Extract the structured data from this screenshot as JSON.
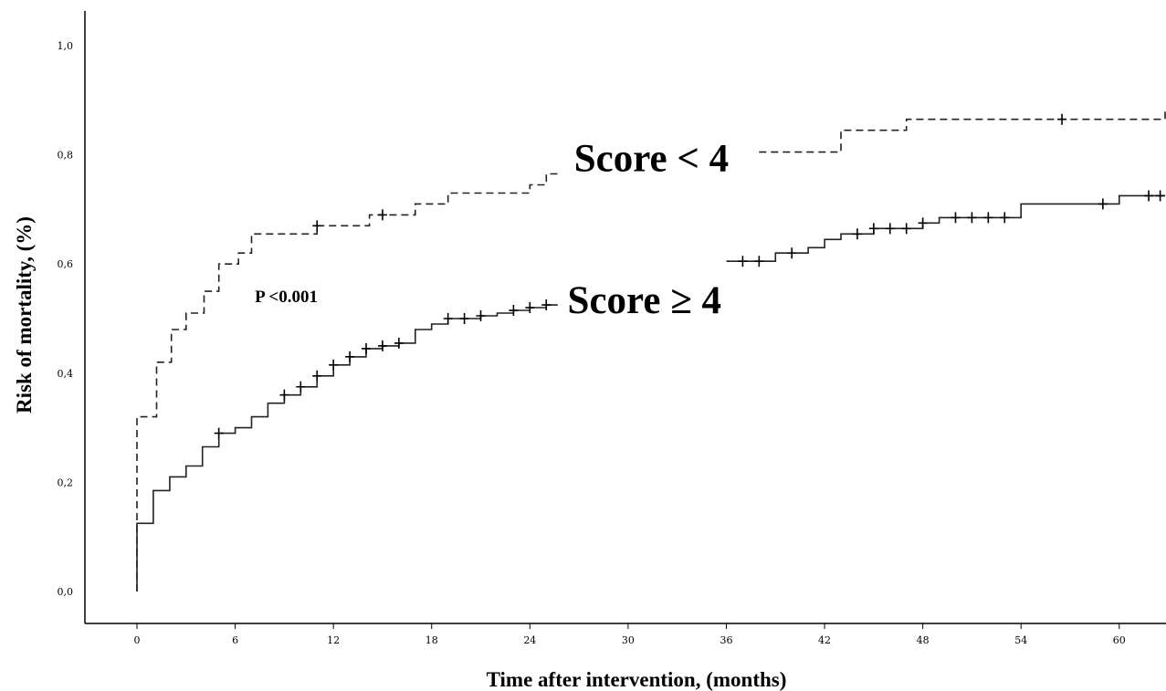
{
  "chart_data": {
    "type": "line",
    "xlabel": "Time after intervention, (months)",
    "ylabel": "Risk of mortality, (%)",
    "xlim": [
      0,
      62.8
    ],
    "ylim": [
      0,
      1.0
    ],
    "x_ticks": [
      0,
      6,
      12,
      18,
      24,
      30,
      36,
      42,
      48,
      54,
      60
    ],
    "y_ticks": [
      0.0,
      0.2,
      0.4,
      0.6,
      0.8,
      1.0
    ],
    "x_tick_labels": [
      "0",
      "6",
      "12",
      "18",
      "24",
      "30",
      "36",
      "42",
      "48",
      "54",
      "60"
    ],
    "y_tick_labels": [
      "0,0",
      "0,2",
      "0,4",
      "0,6",
      "0,8",
      "1,0"
    ],
    "grid": false,
    "annotations": [
      {
        "text": "P <0.001",
        "x": 7.2,
        "y": 0.53,
        "size": "small"
      },
      {
        "text": "Score < 4",
        "x": 26.7,
        "y": 0.77,
        "size": "large"
      },
      {
        "text": "Score ≥ 4",
        "x": 26.3,
        "y": 0.51,
        "size": "large"
      }
    ],
    "series": [
      {
        "style": "dashed",
        "segments": [
          [
            [
              0,
              0
            ],
            [
              0,
              0.32
            ],
            [
              1.2,
              0.32
            ],
            [
              1.2,
              0.42
            ],
            [
              2.1,
              0.42
            ],
            [
              2.1,
              0.48
            ],
            [
              3.0,
              0.48
            ],
            [
              3.0,
              0.51
            ],
            [
              4.1,
              0.51
            ],
            [
              4.1,
              0.55
            ],
            [
              5.0,
              0.55
            ],
            [
              5.0,
              0.6
            ],
            [
              6.2,
              0.6
            ],
            [
              6.2,
              0.62
            ],
            [
              7.0,
              0.62
            ],
            [
              7.0,
              0.655
            ],
            [
              11.0,
              0.655
            ],
            [
              11.0,
              0.67
            ],
            [
              14.2,
              0.67
            ],
            [
              14.2,
              0.69
            ],
            [
              17.0,
              0.69
            ],
            [
              17.0,
              0.71
            ],
            [
              19.0,
              0.71
            ],
            [
              19.0,
              0.73
            ],
            [
              24.0,
              0.73
            ],
            [
              24.0,
              0.745
            ],
            [
              25.0,
              0.745
            ],
            [
              25.0,
              0.765
            ],
            [
              25.7,
              0.765
            ]
          ],
          [
            [
              38.0,
              0.805
            ],
            [
              43.0,
              0.805
            ],
            [
              43.0,
              0.845
            ],
            [
              47.0,
              0.845
            ],
            [
              47.0,
              0.865
            ],
            [
              62.8,
              0.865
            ],
            [
              62.8,
              0.885
            ]
          ]
        ],
        "censored": [
          [
            11.0,
            0.67
          ],
          [
            15.0,
            0.69
          ],
          [
            56.5,
            0.865
          ]
        ]
      },
      {
        "style": "solid",
        "segments": [
          [
            [
              0,
              0
            ],
            [
              0,
              0.125
            ],
            [
              1.0,
              0.125
            ],
            [
              1.0,
              0.185
            ],
            [
              2.0,
              0.185
            ],
            [
              2.0,
              0.21
            ],
            [
              3.0,
              0.21
            ],
            [
              3.0,
              0.23
            ],
            [
              4.0,
              0.23
            ],
            [
              4.0,
              0.265
            ],
            [
              5.0,
              0.265
            ],
            [
              5.0,
              0.29
            ],
            [
              6.0,
              0.29
            ],
            [
              6.0,
              0.3
            ],
            [
              7.0,
              0.3
            ],
            [
              7.0,
              0.32
            ],
            [
              8.0,
              0.32
            ],
            [
              8.0,
              0.345
            ],
            [
              9.0,
              0.345
            ],
            [
              9.0,
              0.36
            ],
            [
              10.0,
              0.36
            ],
            [
              10.0,
              0.375
            ],
            [
              11.0,
              0.375
            ],
            [
              11.0,
              0.395
            ],
            [
              12.0,
              0.395
            ],
            [
              12.0,
              0.415
            ],
            [
              13.0,
              0.415
            ],
            [
              13.0,
              0.43
            ],
            [
              14.0,
              0.43
            ],
            [
              14.0,
              0.445
            ],
            [
              15.0,
              0.445
            ],
            [
              15.0,
              0.45
            ],
            [
              16.0,
              0.45
            ],
            [
              16.0,
              0.455
            ],
            [
              17.0,
              0.455
            ],
            [
              17.0,
              0.48
            ],
            [
              18.0,
              0.48
            ],
            [
              18.0,
              0.49
            ],
            [
              19.0,
              0.49
            ],
            [
              19.0,
              0.5
            ],
            [
              21.0,
              0.5
            ],
            [
              21.0,
              0.505
            ],
            [
              22.0,
              0.505
            ],
            [
              22.0,
              0.51
            ],
            [
              23.0,
              0.51
            ],
            [
              23.0,
              0.515
            ],
            [
              24.0,
              0.515
            ],
            [
              24.0,
              0.52
            ],
            [
              25.0,
              0.52
            ],
            [
              25.0,
              0.525
            ],
            [
              25.7,
              0.525
            ]
          ],
          [
            [
              36.0,
              0.605
            ],
            [
              39.0,
              0.605
            ],
            [
              39.0,
              0.62
            ],
            [
              41.0,
              0.62
            ],
            [
              41.0,
              0.63
            ],
            [
              42.0,
              0.63
            ],
            [
              42.0,
              0.645
            ],
            [
              43.0,
              0.645
            ],
            [
              43.0,
              0.655
            ],
            [
              45.0,
              0.655
            ],
            [
              45.0,
              0.665
            ],
            [
              48.0,
              0.665
            ],
            [
              48.0,
              0.675
            ],
            [
              49.0,
              0.675
            ],
            [
              49.0,
              0.685
            ],
            [
              54.0,
              0.685
            ],
            [
              54.0,
              0.71
            ],
            [
              60.0,
              0.71
            ],
            [
              60.0,
              0.725
            ],
            [
              62.8,
              0.725
            ]
          ]
        ],
        "censored": [
          [
            5.0,
            0.29
          ],
          [
            9.0,
            0.36
          ],
          [
            10.0,
            0.375
          ],
          [
            11.0,
            0.395
          ],
          [
            12.0,
            0.415
          ],
          [
            13.0,
            0.43
          ],
          [
            14.0,
            0.445
          ],
          [
            15.0,
            0.45
          ],
          [
            16.0,
            0.455
          ],
          [
            19.0,
            0.5
          ],
          [
            20.0,
            0.5
          ],
          [
            21.0,
            0.505
          ],
          [
            23.0,
            0.515
          ],
          [
            24.0,
            0.52
          ],
          [
            25.0,
            0.525
          ],
          [
            37.0,
            0.605
          ],
          [
            38.0,
            0.605
          ],
          [
            40.0,
            0.62
          ],
          [
            44.0,
            0.655
          ],
          [
            45.0,
            0.665
          ],
          [
            46.0,
            0.665
          ],
          [
            47.0,
            0.665
          ],
          [
            48.0,
            0.675
          ],
          [
            50.0,
            0.685
          ],
          [
            51.0,
            0.685
          ],
          [
            52.0,
            0.685
          ],
          [
            53.0,
            0.685
          ],
          [
            59.0,
            0.71
          ],
          [
            61.8,
            0.725
          ],
          [
            62.5,
            0.725
          ]
        ]
      }
    ]
  }
}
